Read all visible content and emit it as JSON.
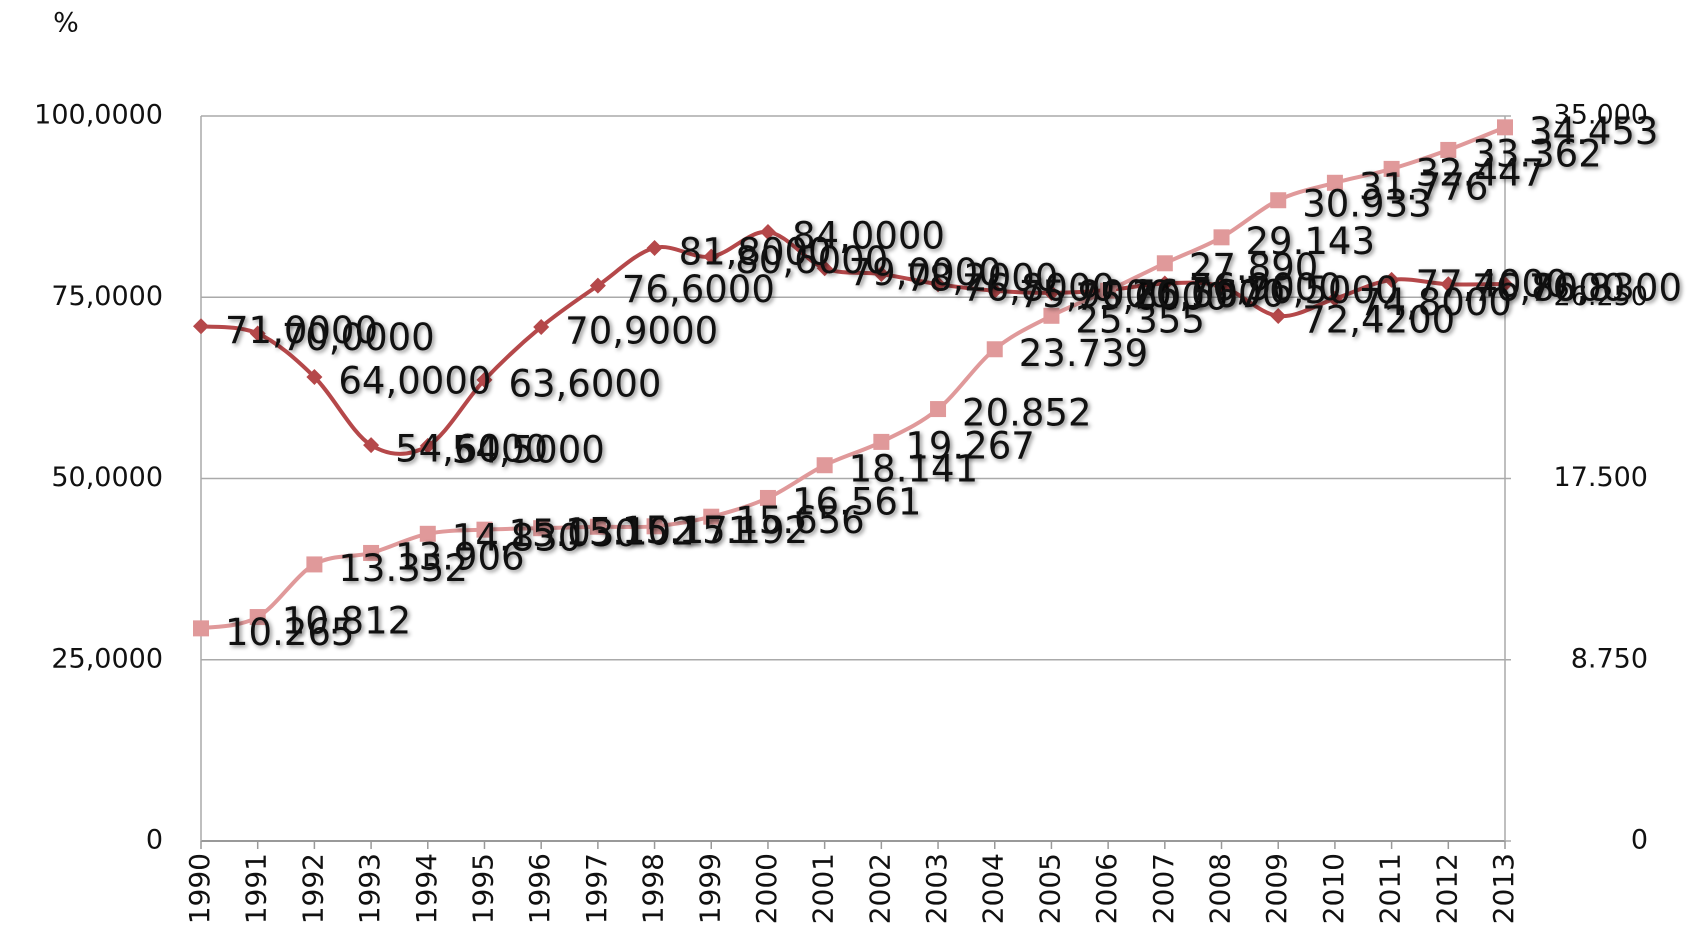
{
  "chart_data": {
    "type": "line",
    "y_label": "%",
    "x": [
      "1990",
      "1991",
      "1992",
      "1993",
      "1994",
      "1995",
      "1996",
      "1997",
      "1998",
      "1999",
      "2000",
      "2001",
      "2002",
      "2003",
      "2004",
      "2005",
      "2006",
      "2007",
      "2008",
      "2009",
      "2010",
      "2011",
      "2012",
      "2013"
    ],
    "ylim": [
      0,
      100
    ],
    "yticks": [
      0,
      {
        "value": 25,
        "label": "25,0000"
      },
      {
        "value": 50,
        "label": "50,0000"
      },
      {
        "value": 75,
        "label": "75,0000"
      },
      {
        "value": 100,
        "label": "100,0000"
      }
    ],
    "y2lim": [
      0,
      35000
    ],
    "y2ticks": [
      0,
      {
        "value": 8750,
        "label": "8.750"
      },
      {
        "value": 17500,
        "label": "17.500"
      },
      {
        "value": 26250,
        "label": "26.250"
      },
      {
        "value": 35000,
        "label": "35.000"
      }
    ],
    "grid": true,
    "series": [
      {
        "color": "#b5484a",
        "marker": "diamond",
        "values": [
          71,
          70,
          64,
          54.6,
          54.5,
          63.6,
          70.9,
          76.6,
          81.8,
          80.6,
          84,
          79,
          78.2,
          76.8,
          75.9,
          75.6,
          76,
          76.9,
          76.5,
          72.42,
          74.8,
          77.4,
          76.8,
          76.83
        ],
        "value_labels": [
          "71,0000",
          "70,0000",
          "64,0000",
          "54,6000",
          "54,5000",
          "63,6000",
          "70,9000",
          "76,6000",
          "81,8000",
          "80,6000",
          "84,0000",
          "79,0000",
          "78,2000",
          "76,8000",
          "75,9000",
          "75,6000",
          "76,0000",
          "76,9000",
          "76,5000",
          "72,4200",
          "74,8000",
          "77,4000",
          "76,8000",
          "76,8300"
        ]
      },
      {
        "color": "#e0999a",
        "marker": "square",
        "axis": "y2",
        "values": [
          10265,
          10812,
          13352,
          13906,
          14830,
          15030,
          15102,
          15171,
          15192,
          15656,
          16561,
          18141,
          19267,
          20852,
          23739,
          25355,
          26567,
          27890,
          29143,
          30933,
          31776,
          32447,
          33362,
          34453
        ],
        "value_labels": [
          "10.265",
          "10.812",
          "13.352",
          "13.906",
          "14.830",
          "15.030",
          "15.102",
          "15.171",
          "15.192",
          "15.656",
          "16.561",
          "18.141",
          "19.267",
          "20.852",
          "23.739",
          "25.355",
          "26.567",
          "27.890",
          "29.143",
          "30.933",
          "31.776",
          "32.447",
          "33.362",
          "34.453"
        ]
      }
    ]
  }
}
